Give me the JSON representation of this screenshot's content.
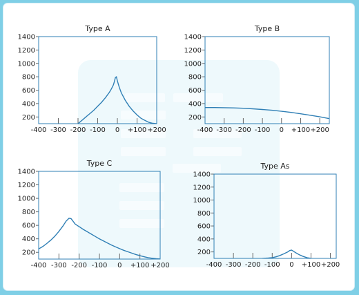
{
  "chart_data": [
    {
      "type": "line",
      "title": "Type A",
      "xlim": [
        -400,
        200
      ],
      "ylim": [
        100,
        1400
      ],
      "xticks": [
        -400,
        -300,
        -200,
        -100,
        0,
        100,
        200
      ],
      "xtick_labels": [
        "-400",
        "-300",
        "-200",
        "-100",
        "0",
        "+100",
        "+200"
      ],
      "yticks": [
        200,
        400,
        600,
        800,
        1000,
        1200,
        1400
      ],
      "ytick_labels": [
        "200",
        "400",
        "600",
        "800",
        "1000",
        "1200",
        "1400"
      ],
      "series": [
        {
          "x": [
            -200,
            -180,
            -160,
            -140,
            -120,
            -100,
            -80,
            -60,
            -40,
            -30,
            -20,
            -15,
            -10,
            -5,
            0,
            5,
            10,
            20,
            40,
            60,
            80,
            100,
            120,
            140,
            160,
            180,
            200
          ],
          "y": [
            100,
            150,
            200,
            250,
            300,
            360,
            420,
            490,
            570,
            620,
            680,
            730,
            790,
            800,
            740,
            690,
            640,
            560,
            450,
            360,
            290,
            230,
            180,
            150,
            120,
            105,
            100
          ]
        }
      ]
    },
    {
      "type": "line",
      "title": "Type B",
      "xlim": [
        -400,
        250
      ],
      "ylim": [
        100,
        1400
      ],
      "xticks": [
        -400,
        -300,
        -200,
        -100,
        0,
        100,
        200
      ],
      "xtick_labels": [
        "-400",
        "-300",
        "-200",
        "-100",
        "0",
        "+100",
        "+200"
      ],
      "yticks": [
        200,
        400,
        600,
        800,
        1000,
        1200,
        1400
      ],
      "ytick_labels": [
        "200",
        "400",
        "600",
        "800",
        "1000",
        "1200",
        "1400"
      ],
      "series": [
        {
          "x": [
            -400,
            -350,
            -300,
            -250,
            -200,
            -150,
            -100,
            -50,
            0,
            50,
            100,
            150,
            200,
            250
          ],
          "y": [
            340,
            340,
            338,
            335,
            330,
            322,
            312,
            300,
            285,
            268,
            248,
            226,
            202,
            175
          ]
        }
      ]
    },
    {
      "type": "line",
      "title": "Type C",
      "xlim": [
        -400,
        200
      ],
      "ylim": [
        100,
        1400
      ],
      "xticks": [
        -400,
        -300,
        -200,
        -100,
        0,
        100,
        200
      ],
      "xtick_labels": [
        "-400",
        "-300",
        "-200",
        "-100",
        "0",
        "+100",
        "+200"
      ],
      "yticks": [
        200,
        400,
        600,
        800,
        1000,
        1200,
        1400
      ],
      "ytick_labels": [
        "200",
        "400",
        "600",
        "800",
        "1000",
        "1200",
        "1400"
      ],
      "series": [
        {
          "x": [
            -400,
            -380,
            -360,
            -340,
            -320,
            -300,
            -280,
            -265,
            -250,
            -240,
            -230,
            -220,
            -210,
            -200,
            -180,
            -160,
            -140,
            -120,
            -100,
            -80,
            -60,
            -40,
            -20,
            0,
            20,
            40,
            60,
            80,
            100,
            120,
            140,
            160,
            180,
            200
          ],
          "y": [
            250,
            285,
            330,
            380,
            440,
            510,
            590,
            660,
            705,
            700,
            660,
            620,
            600,
            580,
            540,
            505,
            470,
            435,
            400,
            368,
            338,
            308,
            280,
            255,
            230,
            208,
            188,
            168,
            150,
            135,
            122,
            112,
            105,
            100
          ]
        }
      ]
    },
    {
      "type": "line",
      "title": "Type As",
      "xlim": [
        -400,
        230
      ],
      "ylim": [
        100,
        1400
      ],
      "xticks": [
        -400,
        -300,
        -200,
        -100,
        0,
        100,
        200
      ],
      "xtick_labels": [
        "-400",
        "-300",
        "-200",
        "-100",
        "0",
        "+100",
        "+200"
      ],
      "yticks": [
        200,
        400,
        600,
        800,
        1000,
        1200,
        1400
      ],
      "ytick_labels": [
        "200",
        "400",
        "600",
        "800",
        "1000",
        "1200",
        "1400"
      ],
      "series": [
        {
          "x": [
            -150,
            -120,
            -100,
            -80,
            -60,
            -40,
            -20,
            -10,
            0,
            10,
            20,
            40,
            60,
            80,
            100
          ],
          "y": [
            100,
            105,
            112,
            125,
            145,
            170,
            200,
            220,
            228,
            210,
            190,
            155,
            130,
            110,
            100
          ]
        }
      ]
    }
  ],
  "colors": {
    "line": "#2f7fb5",
    "frame": "#2f7fb5",
    "tick_mark": "#666666",
    "watermark_panel": "#7fcfe6",
    "watermark_bar": "#ffffff"
  }
}
